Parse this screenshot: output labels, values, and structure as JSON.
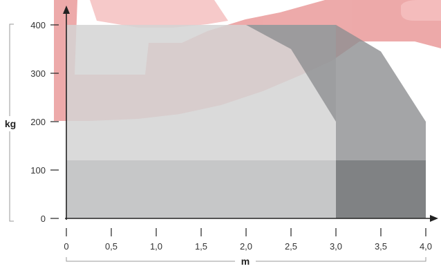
{
  "chart_data": {
    "type": "area",
    "xlabel": "m",
    "ylabel": "kg",
    "xlim": [
      0,
      4.0
    ],
    "ylim": [
      0,
      400
    ],
    "x_ticks": [
      "0",
      "0,5",
      "1,0",
      "1,5",
      "2,0",
      "2,5",
      "3,0",
      "3,5",
      "4,0"
    ],
    "x_tick_values": [
      0,
      0.5,
      1.0,
      1.5,
      2.0,
      2.5,
      3.0,
      3.5,
      4.0
    ],
    "y_ticks": [
      "0",
      "100",
      "200",
      "300",
      "400"
    ],
    "y_tick_values": [
      0,
      100,
      200,
      300,
      400
    ],
    "grid": false,
    "series": [
      {
        "x": [
          0,
          3.0,
          3.0
        ],
        "y": [
          400,
          400,
          200
        ]
      },
      {
        "x": [
          0,
          2.0,
          2.5,
          3.0,
          3.1,
          3.2,
          3.5,
          4.0,
          4.0
        ],
        "y": [
          400,
          400,
          350,
          200,
          200,
          380,
          345,
          200,
          0
        ]
      },
      {
        "x": [
          0,
          4.0
        ],
        "y": [
          120,
          120
        ]
      }
    ],
    "colors": {
      "region_light": "#d3d3d4",
      "region_mid": "#bebfc1",
      "region_dark": "#8d8e91",
      "region_darkest": "#7a7b7e",
      "watermark_red": "#e27272",
      "axis": "#222222",
      "bracket": "#9a9a9a"
    }
  }
}
